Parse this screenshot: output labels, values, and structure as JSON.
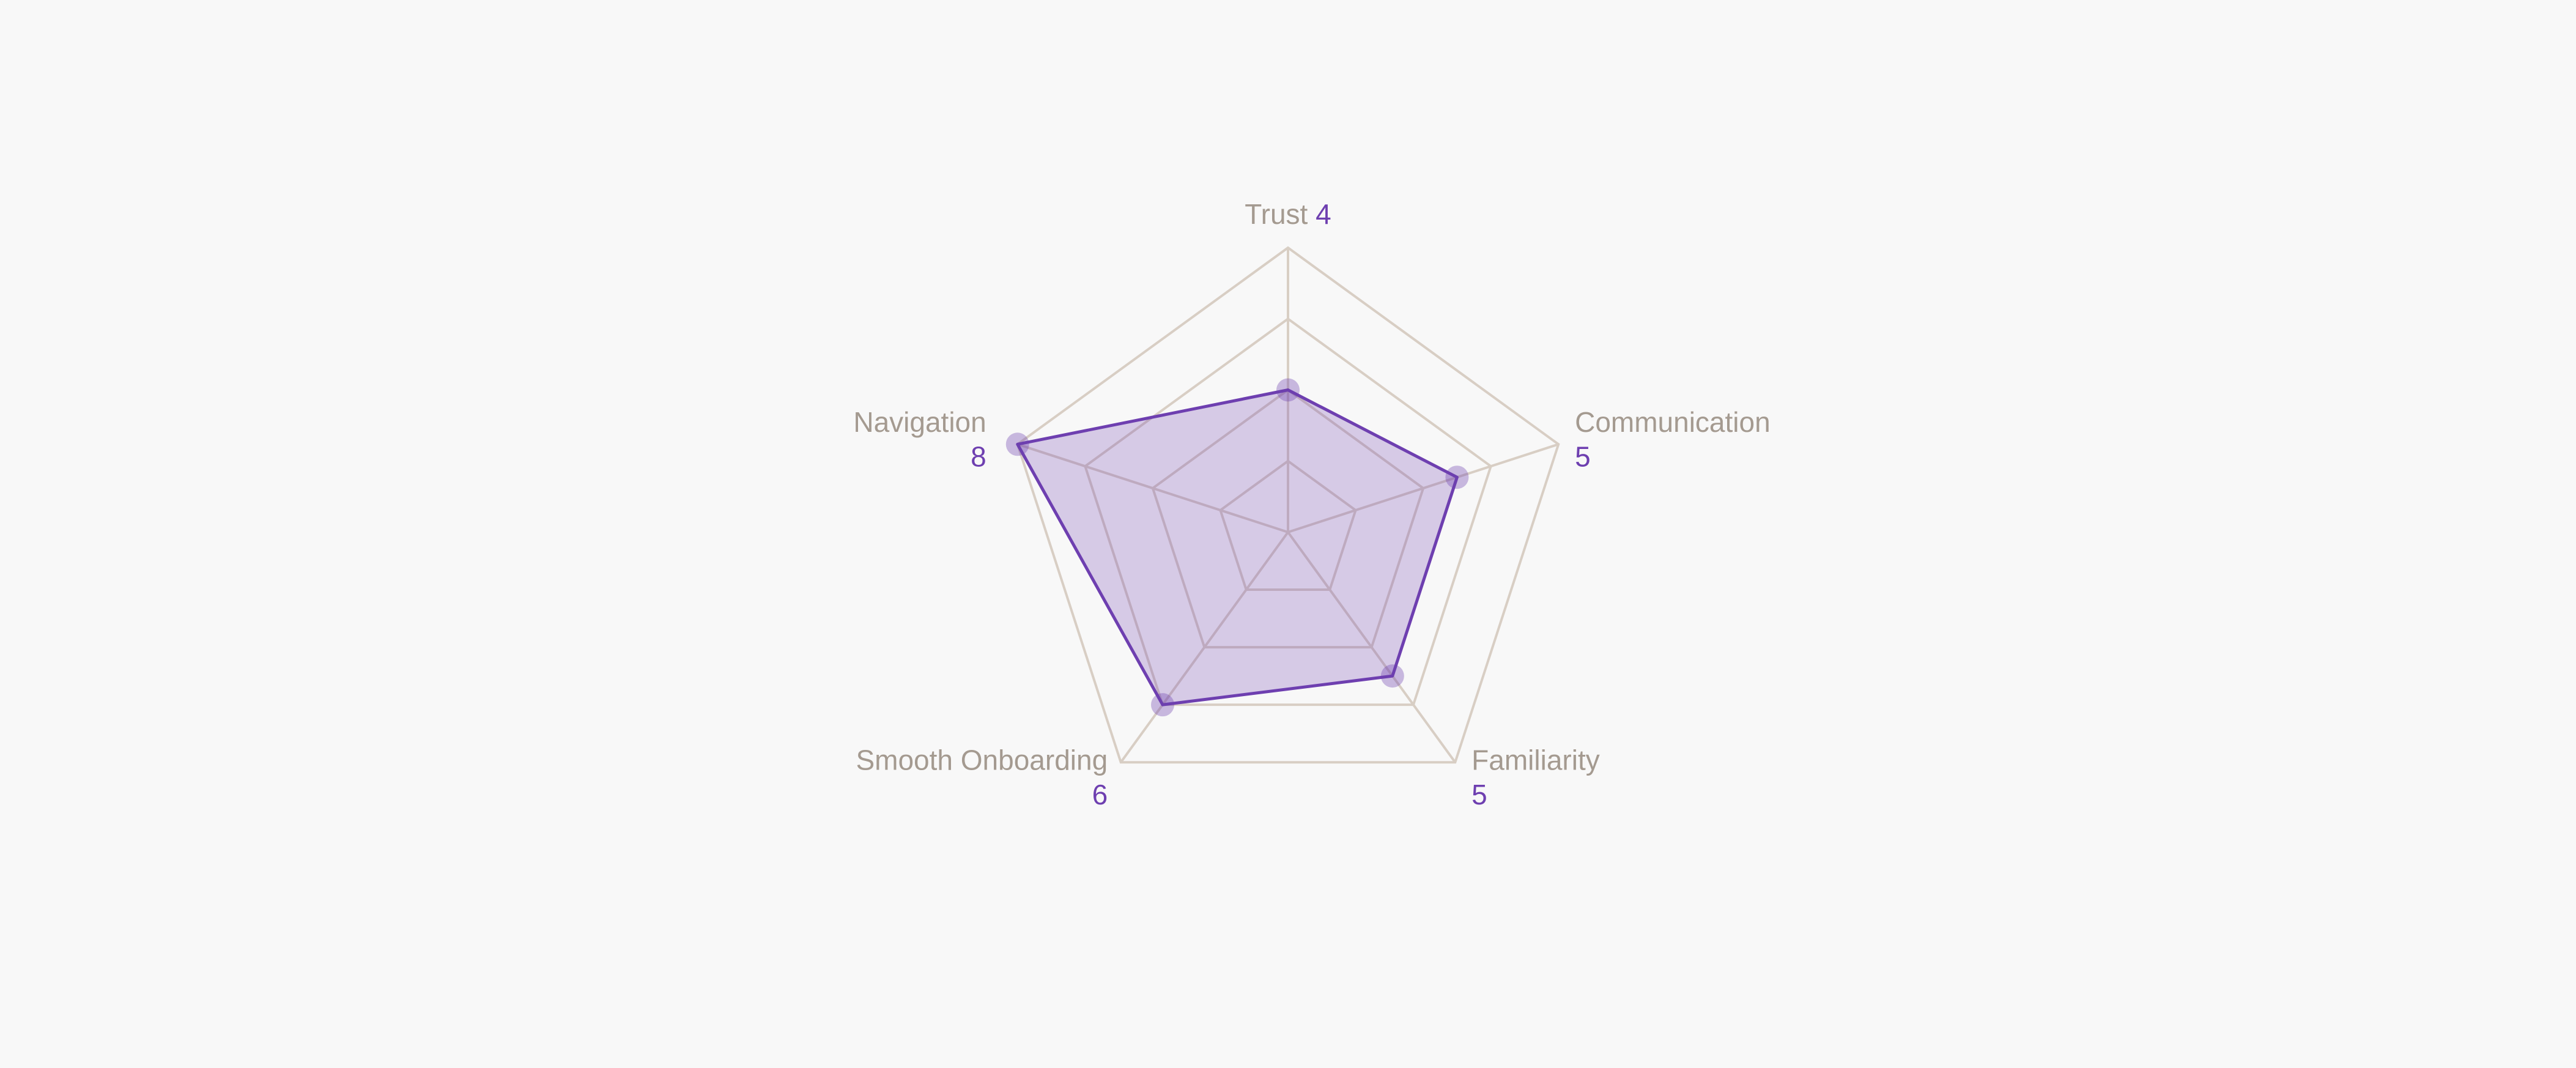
{
  "chart_data": {
    "type": "radar",
    "categories": [
      "Trust",
      "Communication",
      "Familiarity",
      "Smooth Onboarding",
      "Navigation"
    ],
    "series": [
      {
        "values": [
          4,
          5,
          5,
          6,
          8
        ],
        "color": "#6e3fb0"
      }
    ],
    "rlim": [
      0,
      8
    ],
    "rticks": [
      2,
      4,
      6,
      8
    ],
    "grid": true
  }
}
